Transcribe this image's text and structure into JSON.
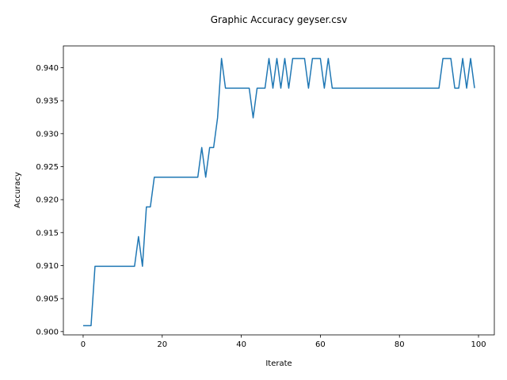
{
  "chart_data": {
    "type": "line",
    "title": "Graphic Accuracy geyser.csv",
    "xlabel": "Iterate",
    "ylabel": "Accuracy",
    "xlim": [
      -5,
      104
    ],
    "ylim": [
      0.8995,
      0.9433
    ],
    "xticks": [
      0,
      20,
      40,
      60,
      80,
      100
    ],
    "yticks": [
      0.9,
      0.905,
      0.91,
      0.915,
      0.92,
      0.925,
      0.93,
      0.935,
      0.94
    ],
    "ytick_labels": [
      "0.900",
      "0.905",
      "0.910",
      "0.915",
      "0.920",
      "0.925",
      "0.930",
      "0.935",
      "0.940"
    ],
    "grid": false,
    "line_color": "#1f77b4",
    "series": [
      {
        "x": [
          0,
          1,
          2,
          3,
          4,
          5,
          6,
          7,
          8,
          9,
          10,
          11,
          12,
          13,
          14,
          15,
          16,
          17,
          18,
          19,
          20,
          21,
          22,
          23,
          24,
          25,
          26,
          27,
          28,
          29,
          30,
          31,
          32,
          33,
          34,
          35,
          36,
          37,
          38,
          39,
          40,
          41,
          42,
          43,
          44,
          45,
          46,
          47,
          48,
          49,
          50,
          51,
          52,
          53,
          54,
          55,
          56,
          57,
          58,
          59,
          60,
          61,
          62,
          63,
          64,
          65,
          66,
          67,
          68,
          69,
          70,
          71,
          72,
          73,
          74,
          75,
          76,
          77,
          78,
          79,
          80,
          81,
          82,
          83,
          84,
          85,
          86,
          87,
          88,
          89,
          90,
          91,
          92,
          93,
          94,
          95,
          96,
          97,
          98,
          99
        ],
        "values": [
          0.9009,
          0.9009,
          0.9009,
          0.9099,
          0.9099,
          0.9099,
          0.9099,
          0.9099,
          0.9099,
          0.9099,
          0.9099,
          0.9099,
          0.9099,
          0.9099,
          0.9144,
          0.9099,
          0.9189,
          0.9189,
          0.9234,
          0.9234,
          0.9234,
          0.9234,
          0.9234,
          0.9234,
          0.9234,
          0.9234,
          0.9234,
          0.9234,
          0.9234,
          0.9234,
          0.9279,
          0.9234,
          0.9279,
          0.9279,
          0.9324,
          0.9414,
          0.9369,
          0.9369,
          0.9369,
          0.9369,
          0.9369,
          0.9369,
          0.9369,
          0.9324,
          0.9369,
          0.9369,
          0.9369,
          0.9414,
          0.9369,
          0.9414,
          0.9369,
          0.9414,
          0.9369,
          0.9414,
          0.9414,
          0.9414,
          0.9414,
          0.9369,
          0.9414,
          0.9414,
          0.9414,
          0.9369,
          0.9414,
          0.9369,
          0.9369,
          0.9369,
          0.9369,
          0.9369,
          0.9369,
          0.9369,
          0.9369,
          0.9369,
          0.9369,
          0.9369,
          0.9369,
          0.9369,
          0.9369,
          0.9369,
          0.9369,
          0.9369,
          0.9369,
          0.9369,
          0.9369,
          0.9369,
          0.9369,
          0.9369,
          0.9369,
          0.9369,
          0.9369,
          0.9369,
          0.9369,
          0.9414,
          0.9414,
          0.9414,
          0.9369,
          0.9369,
          0.9414,
          0.9369,
          0.9414,
          0.9369
        ]
      }
    ]
  }
}
